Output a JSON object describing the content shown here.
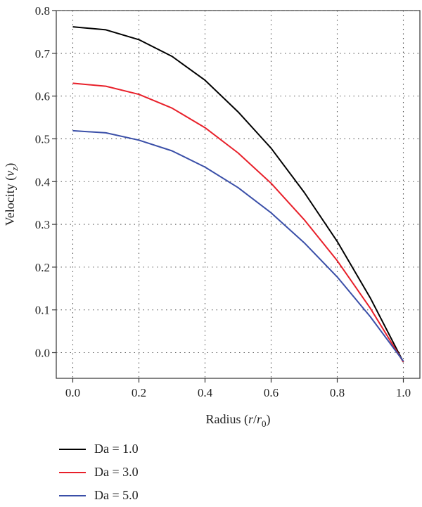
{
  "chart_data": {
    "type": "line",
    "title": "",
    "xlabel_prefix": "Radius (",
    "xlabel_var": "r",
    "xlabel_mid": "/",
    "xlabel_var2": "r",
    "xlabel_sub": "0",
    "xlabel_suffix": ")",
    "ylabel_prefix": "Velocity (",
    "ylabel_var": "v",
    "ylabel_sub": "z",
    "ylabel_suffix": ")",
    "xlim": [
      -0.05,
      1.05
    ],
    "ylim": [
      -0.06,
      0.8
    ],
    "xticks": [
      0.0,
      0.2,
      0.4,
      0.6,
      0.8,
      1.0
    ],
    "xtick_labels": [
      "0.0",
      "0.2",
      "0.4",
      "0.6",
      "0.8",
      "1.0"
    ],
    "yticks": [
      0.0,
      0.1,
      0.2,
      0.3,
      0.4,
      0.5,
      0.6,
      0.7,
      0.8
    ],
    "ytick_labels": [
      "0.0",
      "0.1",
      "0.2",
      "0.3",
      "0.4",
      "0.5",
      "0.6",
      "0.7",
      "0.8"
    ],
    "grid": true,
    "legend_position": "below",
    "x": [
      0.0,
      0.1,
      0.2,
      0.3,
      0.4,
      0.5,
      0.6,
      0.7,
      0.8,
      0.9,
      1.0
    ],
    "series": [
      {
        "name": "Da = 1.0",
        "color": "#000000",
        "values": [
          0.762,
          0.755,
          0.732,
          0.693,
          0.637,
          0.563,
          0.478,
          0.375,
          0.26,
          0.128,
          -0.022
        ]
      },
      {
        "name": "Da = 3.0",
        "color": "#e8202a",
        "values": [
          0.63,
          0.623,
          0.604,
          0.572,
          0.526,
          0.467,
          0.396,
          0.311,
          0.215,
          0.104,
          -0.022
        ]
      },
      {
        "name": "Da = 5.0",
        "color": "#3a4fa8",
        "values": [
          0.519,
          0.514,
          0.497,
          0.472,
          0.434,
          0.386,
          0.327,
          0.257,
          0.177,
          0.084,
          -0.02
        ]
      }
    ]
  }
}
